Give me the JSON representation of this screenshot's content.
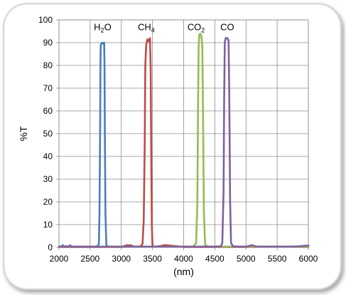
{
  "chart_data": {
    "type": "line",
    "title": "",
    "xlabel": "(nm)",
    "ylabel": "%T",
    "xlim": [
      2000,
      6000
    ],
    "ylim": [
      0,
      100
    ],
    "x_ticks": [
      2000,
      2500,
      3000,
      3500,
      4000,
      4500,
      5000,
      5500,
      6000
    ],
    "y_ticks": [
      0,
      10,
      20,
      30,
      40,
      50,
      60,
      70,
      80,
      90,
      100
    ],
    "grid": true,
    "series": [
      {
        "name": "H2O",
        "color": "#4a7ebb",
        "x": [
          2000,
          2040,
          2060,
          2080,
          2160,
          2180,
          2200,
          2300,
          2560,
          2620,
          2640,
          2650,
          2660,
          2665,
          2670,
          2690,
          2710,
          2725,
          2730,
          2735,
          2745,
          2760,
          2790,
          3000,
          3100,
          3150,
          3200,
          3300,
          3600,
          4000,
          4500,
          5000,
          5500,
          6000
        ],
        "values": [
          0.3,
          0.3,
          1.0,
          0.2,
          0.2,
          1.0,
          0.2,
          0.2,
          0.3,
          0.6,
          1.5,
          15,
          50,
          80,
          89,
          90,
          89.5,
          90,
          80,
          55,
          15,
          1,
          0.3,
          0.3,
          0.3,
          1.0,
          0.3,
          0.3,
          0.3,
          0.3,
          0.3,
          0.3,
          0.3,
          0.5
        ]
      },
      {
        "name": "CH4",
        "color": "#be4b48",
        "x": [
          2000,
          2500,
          3000,
          3100,
          3200,
          3300,
          3340,
          3360,
          3375,
          3385,
          3400,
          3420,
          3440,
          3460,
          3470,
          3480,
          3490,
          3500,
          3520,
          3600,
          3700,
          4000,
          4500,
          5000,
          5500,
          6000
        ],
        "values": [
          0.2,
          0.2,
          0.2,
          1.0,
          0.4,
          0.3,
          1.5,
          12,
          45,
          80,
          89,
          91.5,
          90.5,
          92,
          80,
          40,
          10,
          1,
          0.3,
          0.5,
          1.0,
          0.2,
          0.2,
          0.2,
          0.3,
          0.2
        ]
      },
      {
        "name": "CO2",
        "color": "#98b954",
        "x": [
          2000,
          3000,
          4000,
          4150,
          4200,
          4220,
          4230,
          4240,
          4250,
          4265,
          4285,
          4300,
          4310,
          4325,
          4345,
          4400,
          5000,
          6000
        ],
        "values": [
          0.3,
          0.3,
          0.3,
          0.3,
          2,
          20,
          60,
          88,
          93.5,
          94,
          93,
          88,
          60,
          15,
          1,
          0.3,
          0.3,
          0.3
        ]
      },
      {
        "name": "CO",
        "color": "#7d60a0",
        "x": [
          2000,
          2100,
          2200,
          2500,
          3000,
          3500,
          4000,
          4500,
          4600,
          4620,
          4640,
          4650,
          4660,
          4675,
          4700,
          4720,
          4730,
          4745,
          4760,
          4790,
          4900,
          5000,
          5100,
          5150,
          5200,
          5500,
          5800,
          5900,
          6000
        ],
        "values": [
          0.3,
          0.5,
          0.4,
          0.3,
          0.3,
          0.3,
          0.3,
          0.3,
          0.5,
          2,
          25,
          65,
          90,
          92,
          92,
          91,
          70,
          20,
          2,
          0.5,
          0.3,
          0.3,
          1.0,
          0.4,
          0.3,
          0.3,
          0.3,
          0.6,
          0.8
        ]
      }
    ],
    "annotations": [
      {
        "label": "H2O",
        "base": "H",
        "sub": "2",
        "after": "O",
        "x": 2700,
        "y": 95.5
      },
      {
        "label": "CH4",
        "base": "CH",
        "sub": "4",
        "after": "",
        "x": 3400,
        "y": 95.5
      },
      {
        "label": "CO2",
        "base": "CO",
        "sub": "2",
        "after": "",
        "x": 4200,
        "y": 95.5
      },
      {
        "label": "CO",
        "base": "CO",
        "sub": "",
        "after": "",
        "x": 4700,
        "y": 95.5
      }
    ]
  }
}
